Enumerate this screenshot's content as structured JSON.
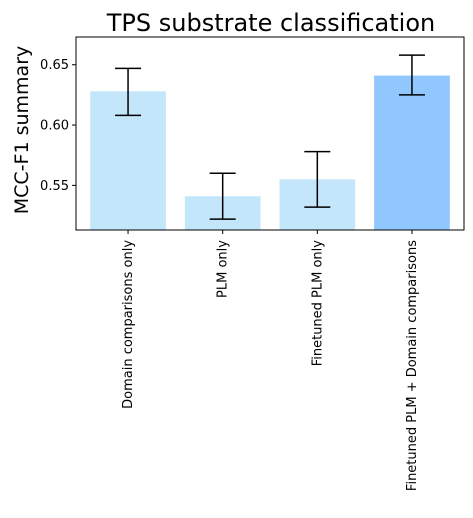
{
  "chart_data": {
    "type": "bar",
    "title": "TPS substrate classification",
    "xlabel": "",
    "ylabel": "MCC-F1 summary",
    "categories": [
      "Domain comparisons only",
      "PLM only",
      "Finetuned PLM only",
      "Finetuned PLM + Domain comparisons"
    ],
    "values": [
      0.628,
      0.541,
      0.555,
      0.641
    ],
    "error_low": [
      0.608,
      0.522,
      0.532,
      0.625
    ],
    "error_high": [
      0.647,
      0.56,
      0.578,
      0.658
    ],
    "bar_colors": [
      "#c4e6fb",
      "#c4e6fb",
      "#c4e6fb",
      "#8fc7fe"
    ],
    "ylim": [
      0.513,
      0.673
    ],
    "yticks": [
      0.55,
      0.6,
      0.65
    ],
    "ytick_labels": [
      "0.55",
      "0.60",
      "0.65"
    ],
    "grid": false,
    "legend": "none"
  }
}
